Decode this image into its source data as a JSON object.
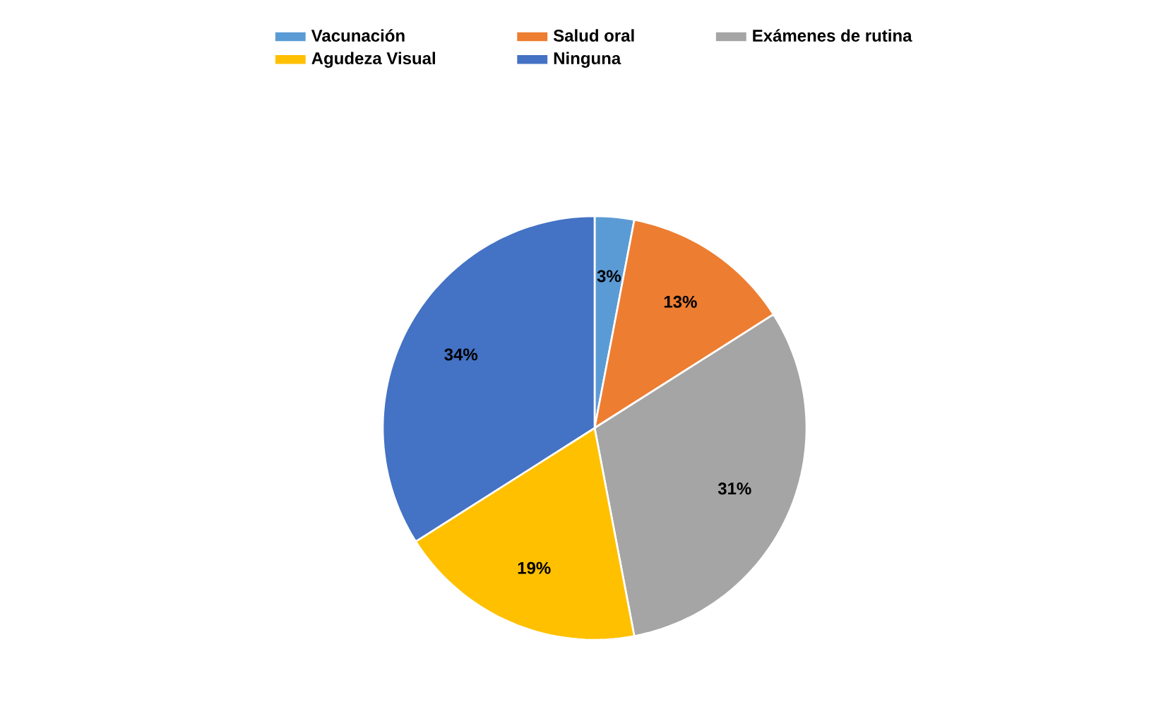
{
  "chart_data": {
    "type": "pie",
    "categories": [
      "Vacunación",
      "Salud oral",
      "Exámenes de rutina",
      "Agudeza Visual",
      "Ninguna"
    ],
    "values": [
      3,
      13,
      31,
      19,
      34
    ],
    "colors": [
      "#5b9bd5",
      "#ed7d31",
      "#a5a5a5",
      "#ffc000",
      "#4472c4"
    ],
    "value_labels": [
      "3%",
      "13%",
      "31%",
      "19%",
      "34%"
    ],
    "legend": "top"
  }
}
